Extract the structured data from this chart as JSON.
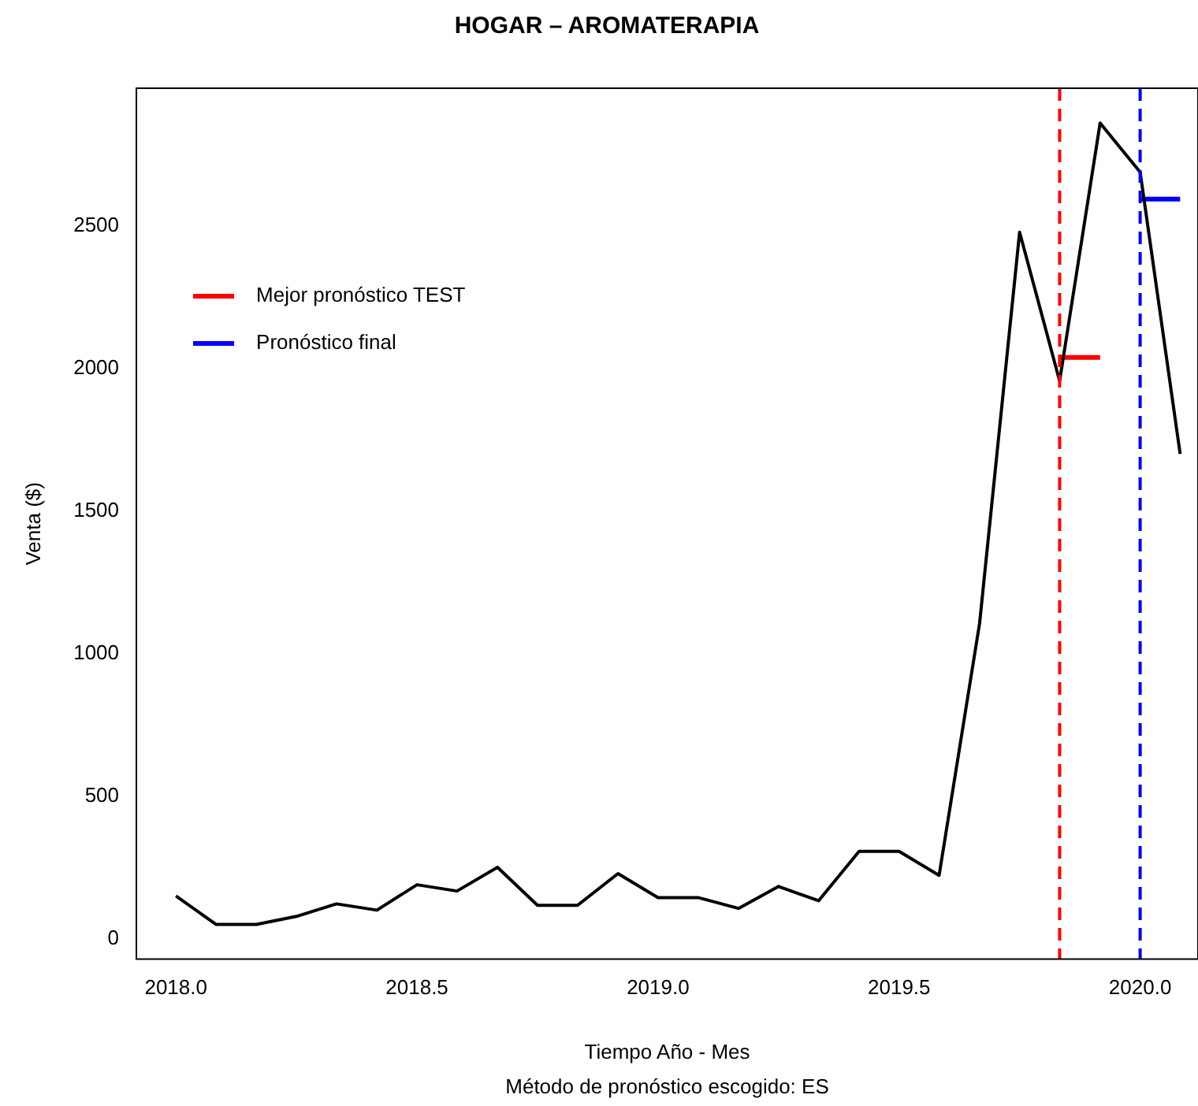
{
  "chart_data": {
    "type": "line",
    "title": "HOGAR – AROMATERAPIA",
    "xlabel": "Tiempo Año - Mes",
    "ylabel": "Venta ($)",
    "annotations": [
      "Método de pronóstico escogido: ES"
    ],
    "series": [
      {
        "color": "#000000",
        "x": [
          2018.0,
          2018.083,
          2018.167,
          2018.25,
          2018.333,
          2018.417,
          2018.5,
          2018.583,
          2018.667,
          2018.75,
          2018.833,
          2018.917,
          2019.0,
          2019.083,
          2019.167,
          2019.25,
          2019.333,
          2019.417,
          2019.5,
          2019.583,
          2019.667,
          2019.75,
          2019.833,
          2019.917,
          2020.0,
          2020.083
        ],
        "values": [
          150,
          50,
          50,
          78,
          122,
          100,
          189,
          167,
          250,
          117,
          117,
          228,
          144,
          144,
          106,
          183,
          133,
          306,
          306,
          222,
          1106,
          2478,
          1956,
          2861,
          2689,
          1700
        ]
      },
      {
        "name": "Mejor pronóstico TEST",
        "color": "#ff0000",
        "x": [
          2019.833,
          2019.917
        ],
        "values": [
          2039,
          2039
        ]
      },
      {
        "name": "Pronóstico final",
        "color": "#0000ff",
        "x": [
          2020.0,
          2020.083
        ],
        "values": [
          2594,
          2594
        ]
      }
    ],
    "ref_lines": [
      {
        "axis": "x",
        "value": 2019.833,
        "color": "#ff0000",
        "line_style": "dashed"
      },
      {
        "axis": "x",
        "value": 2020.0,
        "color": "#0000ff",
        "line_style": "dashed"
      }
    ],
    "xlim": [
      2017.918,
      2020.12
    ],
    "xticks": [
      {
        "value": 2018,
        "label": "2018.0"
      },
      {
        "value": 2018.5,
        "label": "2018.5"
      },
      {
        "value": 2019,
        "label": "2019.0"
      },
      {
        "value": 2019.5,
        "label": "2019.5"
      },
      {
        "value": 2020,
        "label": "2020.0"
      }
    ],
    "ylim": [
      -72,
      2983
    ],
    "yticks": [
      0,
      500,
      1000,
      1500,
      2000,
      2500
    ],
    "legend": "top left",
    "grid": false,
    "marker": "none",
    "line_style": "solid"
  }
}
